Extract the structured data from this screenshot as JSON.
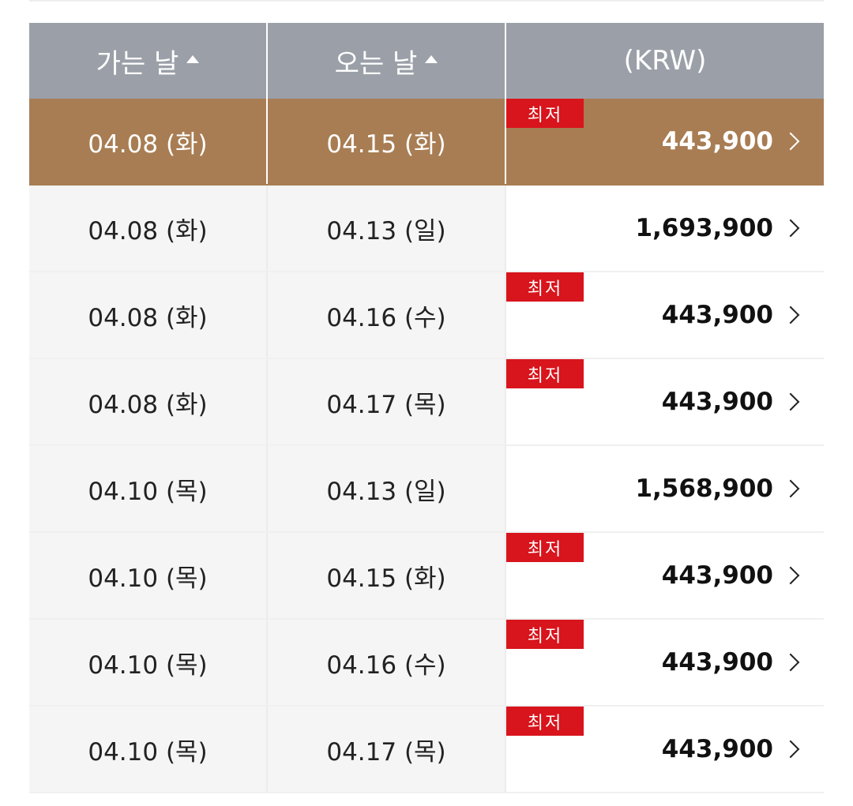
{
  "table": {
    "headers": {
      "depart": "가는 날",
      "return": "오는 날",
      "price": "(KRW)"
    },
    "sort_icon": "triangle-up-icon",
    "badge_label": "최저",
    "row_icon": "chevron-right-icon",
    "colors": {
      "header_bg": "#9ba0a8",
      "selected_row_bg": "#a87d53",
      "badge_bg": "#d8141c"
    },
    "rows": [
      {
        "depart": "04.08 (화)",
        "return": "04.15 (화)",
        "price": "443,900",
        "lowest": true,
        "selected": true
      },
      {
        "depart": "04.08 (화)",
        "return": "04.13 (일)",
        "price": "1,693,900",
        "lowest": false,
        "selected": false
      },
      {
        "depart": "04.08 (화)",
        "return": "04.16 (수)",
        "price": "443,900",
        "lowest": true,
        "selected": false
      },
      {
        "depart": "04.08 (화)",
        "return": "04.17 (목)",
        "price": "443,900",
        "lowest": true,
        "selected": false
      },
      {
        "depart": "04.10 (목)",
        "return": "04.13 (일)",
        "price": "1,568,900",
        "lowest": false,
        "selected": false
      },
      {
        "depart": "04.10 (목)",
        "return": "04.15 (화)",
        "price": "443,900",
        "lowest": true,
        "selected": false
      },
      {
        "depart": "04.10 (목)",
        "return": "04.16 (수)",
        "price": "443,900",
        "lowest": true,
        "selected": false
      },
      {
        "depart": "04.10 (목)",
        "return": "04.17 (목)",
        "price": "443,900",
        "lowest": true,
        "selected": false
      }
    ]
  }
}
